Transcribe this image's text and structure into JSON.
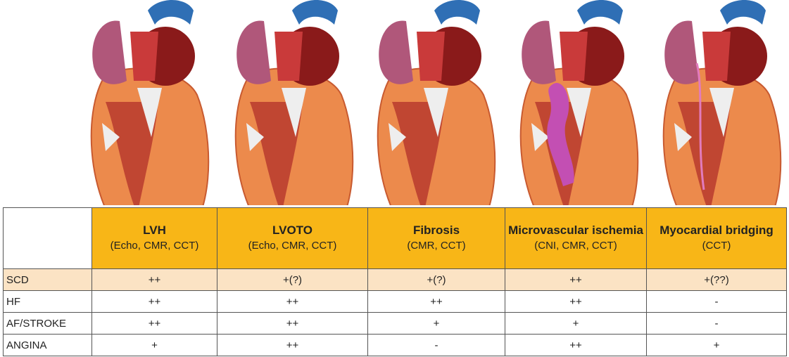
{
  "table": {
    "columns": [
      {
        "name": "LVH",
        "methods": "(Echo, CMR, CCT)"
      },
      {
        "name": "LVOTO",
        "methods": "(Echo, CMR, CCT)"
      },
      {
        "name": "Fibrosis",
        "methods": "(CMR, CCT)"
      },
      {
        "name": "Microvascular ischemia",
        "methods": "(CNI, CMR, CCT)"
      },
      {
        "name": "Myocardial bridging",
        "methods": "(CCT)"
      }
    ],
    "rows": [
      {
        "label": "SCD",
        "cells": [
          "++",
          "+(?)",
          "+(?)",
          "++",
          "+(??)"
        ]
      },
      {
        "label": "HF",
        "cells": [
          "++",
          "++",
          "++",
          "++",
          "-"
        ]
      },
      {
        "label": "AF/STROKE",
        "cells": [
          "++",
          "++",
          "+",
          "+",
          "-"
        ]
      },
      {
        "label": "ANGINA",
        "cells": [
          "+",
          "++",
          "-",
          "++",
          "+"
        ]
      }
    ]
  }
}
